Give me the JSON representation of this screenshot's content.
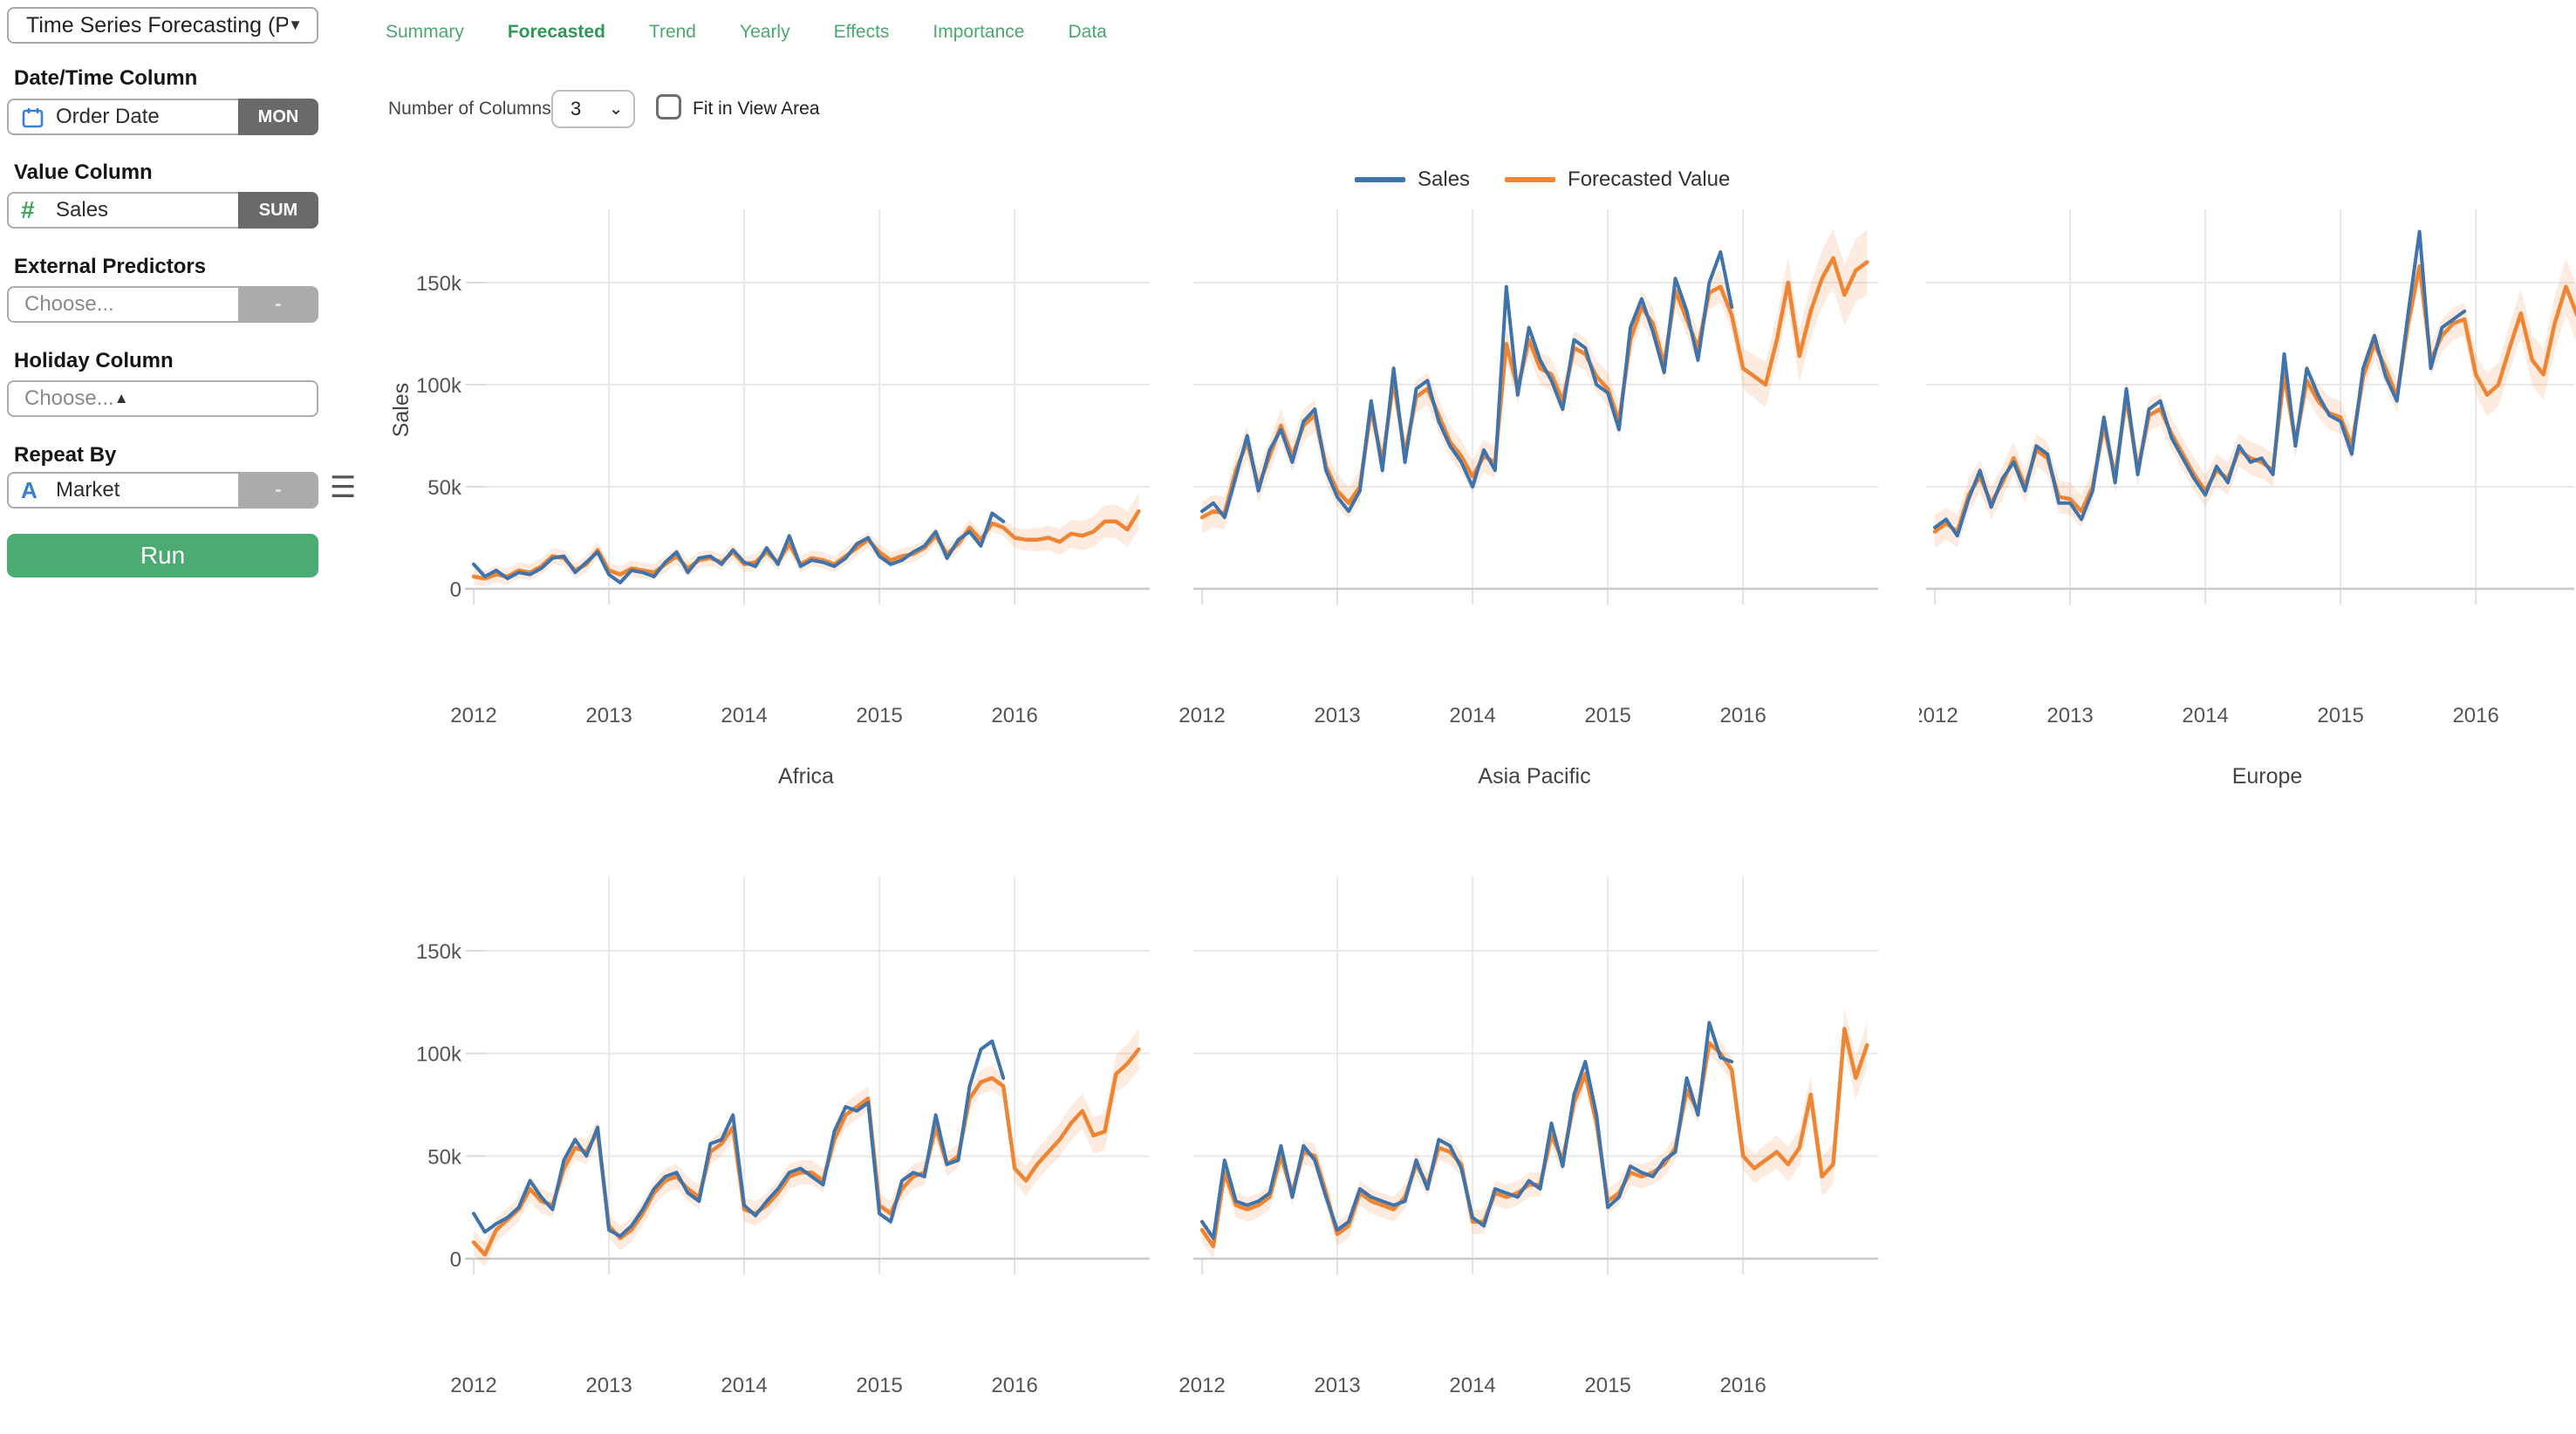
{
  "sidebar": {
    "analysis_type": "Time Series Forecasting (P...",
    "date_time": {
      "label": "Date/Time Column",
      "value": "Order Date",
      "unit": "MON"
    },
    "value_col": {
      "label": "Value Column",
      "value": "Sales",
      "agg": "SUM"
    },
    "external": {
      "label": "External Predictors",
      "placeholder": "Choose...",
      "suffix": "-"
    },
    "holiday": {
      "label": "Holiday Column",
      "placeholder": "Choose..."
    },
    "repeat_by": {
      "label": "Repeat By",
      "value": "Market",
      "suffix": "-"
    },
    "run_label": "Run"
  },
  "tabs": [
    {
      "label": "Summary",
      "active": false
    },
    {
      "label": "Forecasted",
      "active": true
    },
    {
      "label": "Trend",
      "active": false
    },
    {
      "label": "Yearly",
      "active": false
    },
    {
      "label": "Effects",
      "active": false
    },
    {
      "label": "Importance",
      "active": false
    },
    {
      "label": "Data",
      "active": false
    }
  ],
  "toolbar": {
    "columns_label": "Number of Columns:",
    "columns_value": "3",
    "fit_label": "Fit in View Area",
    "fit_checked": false
  },
  "legend": [
    {
      "label": "Sales",
      "color": "#3e74ab"
    },
    {
      "label": "Forecasted Value",
      "color": "#ef8532"
    }
  ],
  "colors": {
    "actual_line": "#3e74ab",
    "forecast_line": "#ef8532",
    "band_fill": "rgba(239,133,50,0.16)",
    "grid": "#e9e9e9",
    "axis": "#c9c9c9",
    "tick_text": "#555555",
    "title_text": "#444444"
  },
  "chart_data": [
    {
      "type": "line",
      "title": "Africa",
      "ylabel": "Sales",
      "x_tick_labels": [
        "2012",
        "2013",
        "2014",
        "2015",
        "2016"
      ],
      "y_tick_labels": [
        "0",
        "50k",
        "100k",
        "150k"
      ],
      "y_tick_values_k": [
        0,
        50,
        100,
        150
      ],
      "values_unit": "thousands",
      "x_range": [
        "2012-01",
        "2016-12"
      ],
      "forecast_start_index": 48,
      "series": [
        {
          "name": "Sales",
          "values_k": [
            12,
            6,
            9,
            5,
            8,
            7,
            10,
            15,
            16,
            8,
            13,
            18,
            7,
            3,
            9,
            8,
            6,
            13,
            18,
            8,
            15,
            16,
            12,
            19,
            13,
            11,
            20,
            12,
            26,
            11,
            14,
            13,
            11,
            15,
            22,
            25,
            16,
            12,
            14,
            18,
            21,
            28,
            15,
            24,
            28,
            21,
            37,
            33
          ]
        },
        {
          "name": "Forecasted Value",
          "values_k": [
            6,
            5,
            7,
            6,
            9,
            8,
            11,
            16,
            15,
            9,
            12,
            19,
            9,
            7,
            10,
            9,
            8,
            12,
            16,
            10,
            14,
            15,
            13,
            18,
            12,
            13,
            18,
            13,
            22,
            12,
            15,
            14,
            12,
            16,
            20,
            24,
            18,
            14,
            16,
            17,
            20,
            26,
            17,
            22,
            30,
            24,
            32,
            30,
            25,
            24,
            24,
            25,
            23,
            27,
            26,
            28,
            33,
            33,
            29,
            38
          ]
        }
      ],
      "band_halfwidth_k": {
        "fit": 4,
        "forecast_start": 5,
        "forecast_end": 9
      }
    },
    {
      "type": "line",
      "title": "Asia Pacific",
      "ylabel": "",
      "x_tick_labels": [
        "2012",
        "2013",
        "2014",
        "2015",
        "2016"
      ],
      "y_tick_labels": [],
      "y_tick_values_k": [
        0,
        50,
        100,
        150
      ],
      "values_unit": "thousands",
      "x_range": [
        "2012-01",
        "2016-12"
      ],
      "forecast_start_index": 48,
      "series": [
        {
          "name": "Sales",
          "values_k": [
            38,
            42,
            35,
            55,
            75,
            48,
            68,
            78,
            62,
            82,
            88,
            58,
            45,
            38,
            48,
            92,
            58,
            108,
            62,
            98,
            102,
            82,
            70,
            62,
            50,
            68,
            58,
            148,
            95,
            128,
            112,
            102,
            88,
            122,
            118,
            100,
            96,
            78,
            128,
            142,
            126,
            106,
            152,
            136,
            112,
            150,
            165,
            138
          ]
        },
        {
          "name": "Forecasted Value",
          "values_k": [
            35,
            38,
            37,
            58,
            72,
            50,
            65,
            80,
            65,
            80,
            85,
            60,
            48,
            42,
            50,
            88,
            62,
            102,
            66,
            94,
            98,
            85,
            72,
            65,
            55,
            65,
            62,
            120,
            98,
            122,
            108,
            105,
            92,
            118,
            115,
            104,
            98,
            82,
            122,
            138,
            130,
            110,
            146,
            132,
            118,
            145,
            148,
            134,
            108,
            104,
            100,
            122,
            150,
            114,
            136,
            152,
            162,
            144,
            156,
            160
          ]
        }
      ],
      "band_halfwidth_k": {
        "fit": 8,
        "forecast_start": 10,
        "forecast_end": 16
      }
    },
    {
      "type": "line",
      "title": "Europe",
      "ylabel": "",
      "x_tick_labels": [
        "2012",
        "2013",
        "2014",
        "2015",
        "2016"
      ],
      "y_tick_labels": [],
      "y_tick_values_k": [
        0,
        50,
        100,
        150
      ],
      "values_unit": "thousands",
      "x_range": [
        "2012-01",
        "2016-12"
      ],
      "forecast_start_index": 48,
      "series": [
        {
          "name": "Sales",
          "values_k": [
            30,
            34,
            26,
            44,
            58,
            40,
            54,
            62,
            48,
            70,
            66,
            42,
            42,
            34,
            48,
            84,
            52,
            98,
            56,
            88,
            92,
            74,
            64,
            54,
            46,
            60,
            52,
            70,
            62,
            64,
            56,
            115,
            70,
            108,
            95,
            85,
            82,
            66,
            108,
            124,
            104,
            92,
            135,
            175,
            108,
            128,
            132,
            136
          ]
        },
        {
          "name": "Forecasted Value",
          "values_k": [
            28,
            32,
            28,
            46,
            55,
            42,
            52,
            64,
            50,
            68,
            64,
            45,
            44,
            38,
            50,
            80,
            55,
            94,
            58,
            85,
            88,
            76,
            66,
            56,
            48,
            58,
            54,
            68,
            64,
            62,
            58,
            105,
            72,
            102,
            92,
            86,
            84,
            70,
            104,
            120,
            108,
            94,
            130,
            158,
            112,
            124,
            130,
            132,
            105,
            95,
            100,
            118,
            135,
            112,
            105,
            130,
            148,
            134,
            150,
            142
          ]
        }
      ],
      "band_halfwidth_k": {
        "fit": 8,
        "forecast_start": 10,
        "forecast_end": 15
      }
    },
    {
      "type": "line",
      "title": "",
      "ylabel": "",
      "x_tick_labels": [
        "2012",
        "2013",
        "2014",
        "2015",
        "2016"
      ],
      "y_tick_labels": [
        "0",
        "50k",
        "100k",
        "150k"
      ],
      "y_tick_values_k": [
        0,
        50,
        100,
        150
      ],
      "values_unit": "thousands",
      "x_range": [
        "2012-01",
        "2016-12"
      ],
      "forecast_start_index": 48,
      "series": [
        {
          "name": "Sales",
          "values_k": [
            22,
            13,
            17,
            20,
            25,
            38,
            30,
            24,
            48,
            58,
            50,
            64,
            14,
            11,
            16,
            24,
            34,
            40,
            42,
            32,
            28,
            56,
            58,
            70,
            26,
            21,
            28,
            34,
            42,
            44,
            40,
            36,
            62,
            74,
            72,
            76,
            22,
            18,
            38,
            42,
            40,
            70,
            46,
            48,
            84,
            102,
            106,
            88
          ]
        },
        {
          "name": "Forecasted Value",
          "values_k": [
            8,
            2,
            14,
            19,
            24,
            34,
            28,
            26,
            44,
            54,
            52,
            62,
            16,
            10,
            14,
            22,
            32,
            38,
            40,
            34,
            30,
            52,
            56,
            64,
            24,
            22,
            26,
            32,
            40,
            42,
            42,
            38,
            58,
            70,
            74,
            78,
            26,
            22,
            34,
            40,
            42,
            64,
            46,
            50,
            78,
            86,
            88,
            84,
            44,
            38,
            46,
            52,
            58,
            66,
            72,
            60,
            62,
            90,
            95,
            102
          ]
        }
      ],
      "band_halfwidth_k": {
        "fit": 6,
        "forecast_start": 7,
        "forecast_end": 10
      }
    },
    {
      "type": "line",
      "title": "",
      "ylabel": "",
      "x_tick_labels": [
        "2012",
        "2013",
        "2014",
        "2015",
        "2016"
      ],
      "y_tick_labels": [],
      "y_tick_values_k": [
        0,
        50,
        100,
        150
      ],
      "values_unit": "thousands",
      "x_range": [
        "2012-01",
        "2016-12"
      ],
      "forecast_start_index": 48,
      "series": [
        {
          "name": "Sales",
          "values_k": [
            18,
            10,
            48,
            28,
            26,
            28,
            32,
            55,
            30,
            55,
            48,
            30,
            14,
            18,
            34,
            30,
            28,
            26,
            28,
            48,
            34,
            58,
            55,
            44,
            20,
            16,
            34,
            32,
            30,
            38,
            34,
            66,
            45,
            80,
            96,
            70,
            25,
            30,
            45,
            42,
            40,
            48,
            52,
            88,
            70,
            115,
            98,
            96
          ]
        },
        {
          "name": "Forecasted Value",
          "values_k": [
            14,
            6,
            42,
            26,
            24,
            26,
            30,
            50,
            32,
            52,
            50,
            32,
            12,
            16,
            32,
            28,
            26,
            24,
            30,
            46,
            36,
            54,
            52,
            46,
            18,
            18,
            32,
            30,
            32,
            36,
            36,
            60,
            48,
            76,
            90,
            66,
            28,
            32,
            42,
            40,
            42,
            46,
            54,
            82,
            72,
            105,
            100,
            92,
            50,
            44,
            48,
            52,
            46,
            54,
            80,
            40,
            46,
            112,
            88,
            104
          ]
        }
      ],
      "band_halfwidth_k": {
        "fit": 6,
        "forecast_start": 7,
        "forecast_end": 11
      }
    }
  ]
}
